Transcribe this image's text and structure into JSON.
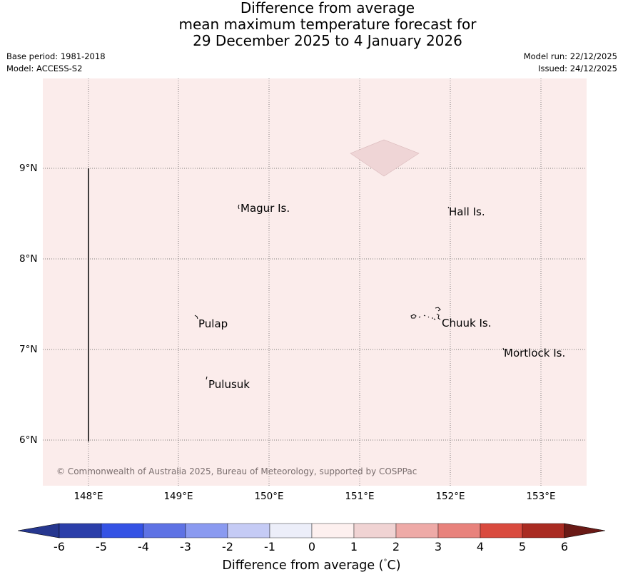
{
  "header": {
    "title_lines": [
      "Difference from average",
      "mean maximum temperature forecast for",
      "29 December 2025 to 4 January 2026"
    ],
    "base_period": "Base period: 1981-2018",
    "model": "Model: ACCESS-S2",
    "model_run": "Model run: 22/12/2025",
    "issued": "Issued: 24/12/2025"
  },
  "map": {
    "background_color": "#fbeceb",
    "shaded_patch_color": "#efd5d6",
    "lat_labels": [
      "9°N",
      "8°N",
      "7°N",
      "6°N"
    ],
    "lon_labels": [
      "148°E",
      "149°E",
      "150°E",
      "151°E",
      "152°E",
      "153°E"
    ],
    "places": [
      {
        "name": "Magur Is."
      },
      {
        "name": "Hall Is."
      },
      {
        "name": "Pulap"
      },
      {
        "name": "Chuuk Is."
      },
      {
        "name": "Mortlock Is."
      },
      {
        "name": "Pulusuk"
      }
    ],
    "copyright": "© Commonwealth of Australia 2025, Bureau of Meteorology, supported by COSPPac"
  },
  "colorbar": {
    "label": "Difference from average (°C)",
    "label_prefix": "Difference from average (",
    "label_unit": "°C",
    "label_suffix": ")",
    "ticks": [
      "-6",
      "-5",
      "-4",
      "-3",
      "-2",
      "-1",
      "0",
      "1",
      "2",
      "3",
      "4",
      "5",
      "6"
    ],
    "colors": [
      "#26378f",
      "#2b3ea9",
      "#3452e4",
      "#5e72e4",
      "#8a9af0",
      "#c5cbf5",
      "#eceef9",
      "#fdf0ef",
      "#f0d3d3",
      "#eeaaa7",
      "#e8827c",
      "#d94a3e",
      "#a92b22",
      "#6a1a16"
    ]
  }
}
